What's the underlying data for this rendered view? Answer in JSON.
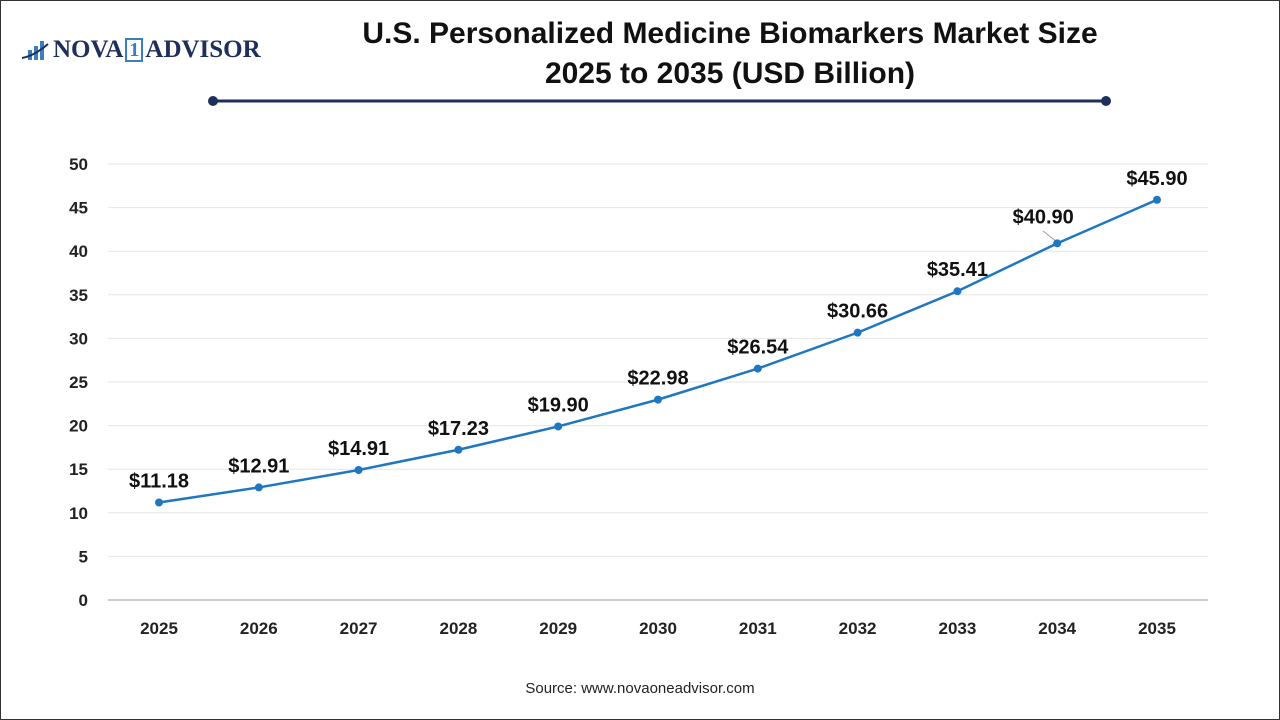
{
  "logo": {
    "text_left": "NOVA",
    "text_num": "1",
    "text_right": "ADVISOR"
  },
  "title_line1": "U.S. Personalized Medicine Biomarkers Market Size",
  "title_line2": "2025 to 2035 (USD Billion)",
  "source": "Source: www.novaoneadvisor.com",
  "colors": {
    "line": "#1f77c0",
    "title_rule": "#1f2f5c"
  },
  "chart_data": {
    "type": "line",
    "categories": [
      "2025",
      "2026",
      "2027",
      "2028",
      "2029",
      "2030",
      "2031",
      "2032",
      "2033",
      "2034",
      "2035"
    ],
    "values": [
      11.18,
      12.91,
      14.91,
      17.23,
      19.9,
      22.98,
      26.54,
      30.66,
      35.41,
      40.9,
      45.9
    ],
    "data_labels": [
      "$11.18",
      "$12.91",
      "$14.91",
      "$17.23",
      "$19.90",
      "$22.98",
      "$26.54",
      "$30.66",
      "$35.41",
      "$40.90",
      "$45.90"
    ],
    "ylim": [
      0,
      50
    ],
    "yticks": [
      0,
      5,
      10,
      15,
      20,
      25,
      30,
      35,
      40,
      45,
      50
    ],
    "grid": true,
    "xlabel": "",
    "ylabel": ""
  }
}
